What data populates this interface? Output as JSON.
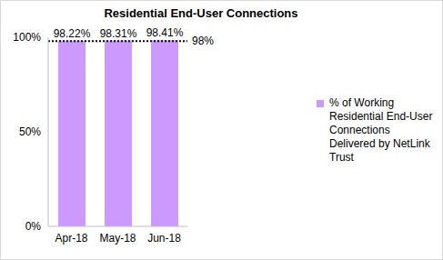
{
  "chart_data": {
    "type": "bar",
    "title": "Residential End-User Connections",
    "categories": [
      "Apr-18",
      "May-18",
      "Jun-18"
    ],
    "series": [
      {
        "name": "% of Working Residential End-User Connections Delivered by NetLink Trust",
        "color": "#cc99ff",
        "values": [
          98.22,
          98.31,
          98.41
        ],
        "value_labels": [
          "98.22%",
          "98.31%",
          "98.41%"
        ]
      }
    ],
    "ylim": [
      0,
      100
    ],
    "yticks": [
      {
        "value": 0,
        "label": "0%"
      },
      {
        "value": 50,
        "label": "50%"
      },
      {
        "value": 100,
        "label": "100%"
      }
    ],
    "target": {
      "value": 98,
      "label": "98%"
    },
    "data_labels": true,
    "legend": "right",
    "grid": false
  }
}
